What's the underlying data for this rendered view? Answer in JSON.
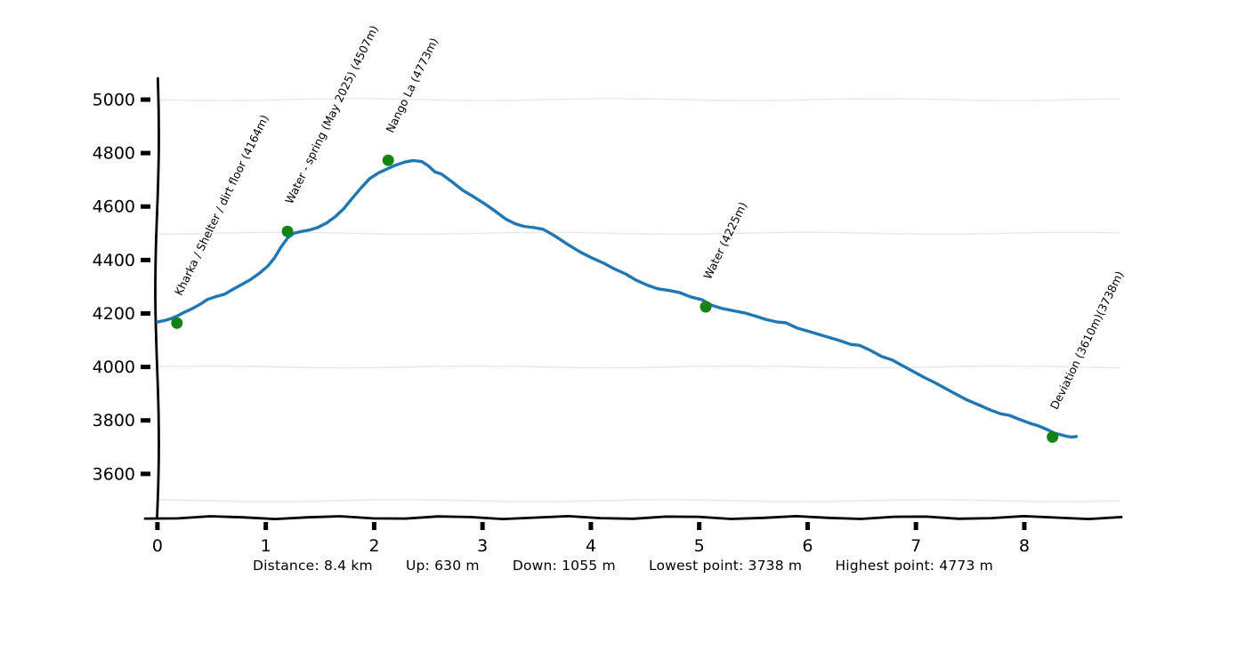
{
  "chart_data": {
    "type": "line",
    "title": "",
    "xlabel": "",
    "ylabel": "",
    "x_unit": "km",
    "y_unit": "m",
    "style": "hand-drawn-xkcd",
    "grid": "horizontal",
    "legend_position": "none",
    "xlim": [
      -0.11,
      8.89
    ],
    "ylim": [
      3433,
      5080
    ],
    "x_ticks": [
      0,
      1,
      2,
      3,
      4,
      5,
      6,
      7,
      8
    ],
    "y_ticks": [
      5000,
      4800,
      4600,
      4400,
      4200,
      4000,
      3800,
      3600
    ],
    "gridline_elevations": [
      5000,
      4500,
      4000,
      3500
    ],
    "colors": {
      "line": "#1f77b4",
      "marker": "#138413",
      "grid": "#e8e8e8",
      "axis": "#000000",
      "text": "#000000"
    },
    "series": [
      {
        "name": "elevation_profile",
        "points": [
          [
            0.0,
            4168
          ],
          [
            0.06,
            4173
          ],
          [
            0.12,
            4180
          ],
          [
            0.18,
            4190
          ],
          [
            0.24,
            4203
          ],
          [
            0.32,
            4218
          ],
          [
            0.4,
            4236
          ],
          [
            0.46,
            4252
          ],
          [
            0.54,
            4263
          ],
          [
            0.62,
            4272
          ],
          [
            0.7,
            4291
          ],
          [
            0.78,
            4309
          ],
          [
            0.86,
            4327
          ],
          [
            0.94,
            4350
          ],
          [
            1.02,
            4378
          ],
          [
            1.08,
            4408
          ],
          [
            1.14,
            4448
          ],
          [
            1.2,
            4482
          ],
          [
            1.26,
            4500
          ],
          [
            1.32,
            4506
          ],
          [
            1.4,
            4512
          ],
          [
            1.48,
            4522
          ],
          [
            1.56,
            4538
          ],
          [
            1.64,
            4562
          ],
          [
            1.72,
            4592
          ],
          [
            1.8,
            4632
          ],
          [
            1.88,
            4670
          ],
          [
            1.96,
            4705
          ],
          [
            2.04,
            4726
          ],
          [
            2.12,
            4741
          ],
          [
            2.2,
            4755
          ],
          [
            2.28,
            4766
          ],
          [
            2.36,
            4772
          ],
          [
            2.44,
            4768
          ],
          [
            2.5,
            4752
          ],
          [
            2.56,
            4730
          ],
          [
            2.62,
            4722
          ],
          [
            2.72,
            4692
          ],
          [
            2.82,
            4660
          ],
          [
            2.92,
            4636
          ],
          [
            3.02,
            4610
          ],
          [
            3.12,
            4582
          ],
          [
            3.22,
            4552
          ],
          [
            3.3,
            4536
          ],
          [
            3.38,
            4526
          ],
          [
            3.48,
            4521
          ],
          [
            3.56,
            4515
          ],
          [
            3.66,
            4492
          ],
          [
            3.78,
            4460
          ],
          [
            3.9,
            4430
          ],
          [
            4.02,
            4406
          ],
          [
            4.12,
            4388
          ],
          [
            4.22,
            4366
          ],
          [
            4.32,
            4348
          ],
          [
            4.42,
            4324
          ],
          [
            4.52,
            4306
          ],
          [
            4.62,
            4292
          ],
          [
            4.72,
            4286
          ],
          [
            4.82,
            4278
          ],
          [
            4.92,
            4262
          ],
          [
            5.02,
            4252
          ],
          [
            5.12,
            4230
          ],
          [
            5.22,
            4218
          ],
          [
            5.32,
            4210
          ],
          [
            5.42,
            4202
          ],
          [
            5.52,
            4190
          ],
          [
            5.62,
            4177
          ],
          [
            5.72,
            4168
          ],
          [
            5.8,
            4165
          ],
          [
            5.9,
            4146
          ],
          [
            6.0,
            4134
          ],
          [
            6.1,
            4122
          ],
          [
            6.2,
            4110
          ],
          [
            6.3,
            4098
          ],
          [
            6.4,
            4084
          ],
          [
            6.48,
            4081
          ],
          [
            6.58,
            4062
          ],
          [
            6.68,
            4040
          ],
          [
            6.78,
            4026
          ],
          [
            6.88,
            4004
          ],
          [
            6.98,
            3982
          ],
          [
            7.08,
            3960
          ],
          [
            7.18,
            3940
          ],
          [
            7.28,
            3918
          ],
          [
            7.38,
            3896
          ],
          [
            7.48,
            3875
          ],
          [
            7.58,
            3858
          ],
          [
            7.68,
            3840
          ],
          [
            7.78,
            3825
          ],
          [
            7.86,
            3819
          ],
          [
            7.96,
            3803
          ],
          [
            8.06,
            3788
          ],
          [
            8.14,
            3778
          ],
          [
            8.22,
            3764
          ],
          [
            8.28,
            3752
          ],
          [
            8.34,
            3746
          ],
          [
            8.4,
            3740
          ],
          [
            8.44,
            3738
          ],
          [
            8.48,
            3740
          ]
        ]
      }
    ],
    "waypoints": [
      {
        "label": "Kharka / Shelter / dirt floor (4164m)",
        "km": 0.18,
        "elev": 4164
      },
      {
        "label": "Water - spring (May 2025) (4507m)",
        "km": 1.2,
        "elev": 4507
      },
      {
        "label": "Nango La (4773m)",
        "km": 2.13,
        "elev": 4773
      },
      {
        "label": "Water (4225m)",
        "km": 5.06,
        "elev": 4225
      },
      {
        "label": "Deviation (3610m)(3738m)",
        "km": 8.26,
        "elev": 3738
      }
    ]
  },
  "stats": {
    "items": [
      {
        "label": "Distance",
        "value": "8.4 km",
        "text": "Distance: 8.4 km"
      },
      {
        "label": "Up",
        "value": "630 m",
        "text": "Up: 630 m"
      },
      {
        "label": "Down",
        "value": "1055 m",
        "text": "Down: 1055 m"
      },
      {
        "label": "Lowest point",
        "value": "3738 m",
        "text": "Lowest point: 3738 m"
      },
      {
        "label": "Highest point",
        "value": "4773 m",
        "text": "Highest point: 4773 m"
      }
    ]
  }
}
